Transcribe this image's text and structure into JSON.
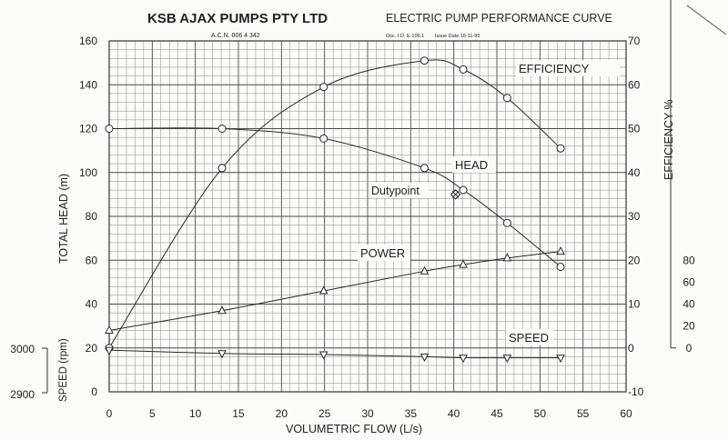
{
  "header": {
    "company": "KSB AJAX PUMPS PTY LTD",
    "acn": "A.C.N. 006 4 342",
    "title": "ELECTRIC PUMP PERFORMANCE CURVE",
    "doc_id": "Doc. I.D. E-109.1",
    "issue_date": "Issue Date 16-11-95"
  },
  "chart_data": {
    "type": "line",
    "xlabel": "VOLUMETRIC FLOW (L/s)",
    "xlim": [
      0,
      60
    ],
    "x_ticks": [
      0,
      5,
      10,
      15,
      20,
      25,
      30,
      35,
      40,
      45,
      50,
      55,
      60
    ],
    "left_axis": {
      "label": "TOTAL HEAD (m)",
      "ylim": [
        0,
        160
      ],
      "ticks": [
        0,
        20,
        40,
        60,
        80,
        100,
        120,
        140,
        160
      ]
    },
    "right_axis": {
      "label": "EFFICIENCY %",
      "ylim": [
        -10,
        70
      ],
      "ticks": [
        -10,
        0,
        10,
        20,
        30,
        40,
        50,
        60,
        70
      ]
    },
    "power_axis": {
      "ylim": [
        -10,
        70
      ],
      "ticks": [
        0,
        20,
        40,
        60,
        80
      ]
    },
    "speed_axis": {
      "label": "SPEED (rpm)",
      "ticks": [
        2900,
        3000
      ]
    },
    "grid": true,
    "series": [
      {
        "name": "HEAD",
        "axis": "left",
        "marker": "circle",
        "x": [
          0,
          13.1,
          24.9,
          36.6,
          41.1,
          46.2,
          52.4
        ],
        "y": [
          120,
          120,
          115.5,
          102,
          92,
          77,
          57
        ]
      },
      {
        "name": "EFFICIENCY",
        "axis": "right",
        "marker": "circle",
        "x": [
          0,
          13.1,
          24.9,
          36.6,
          41.1,
          46.2,
          52.4
        ],
        "y": [
          0,
          41,
          59.5,
          65.5,
          63.5,
          57,
          45.5
        ]
      },
      {
        "name": "POWER",
        "axis": "power",
        "marker": "triangle-up",
        "x": [
          0,
          13.1,
          24.9,
          36.6,
          41.1,
          46.2,
          52.4
        ],
        "y": [
          4,
          8.5,
          13,
          17.5,
          19,
          20.5,
          22
        ]
      },
      {
        "name": "SPEED",
        "axis": "left",
        "marker": "triangle-down",
        "x": [
          0,
          13.1,
          24.9,
          36.6,
          41.1,
          46.2,
          52.4
        ],
        "y": [
          19,
          17.5,
          17,
          16,
          15.5,
          15.5,
          15.5
        ]
      }
    ],
    "annotations": [
      {
        "text": "Dutypoint",
        "x": 40.2,
        "y": 90
      }
    ]
  }
}
